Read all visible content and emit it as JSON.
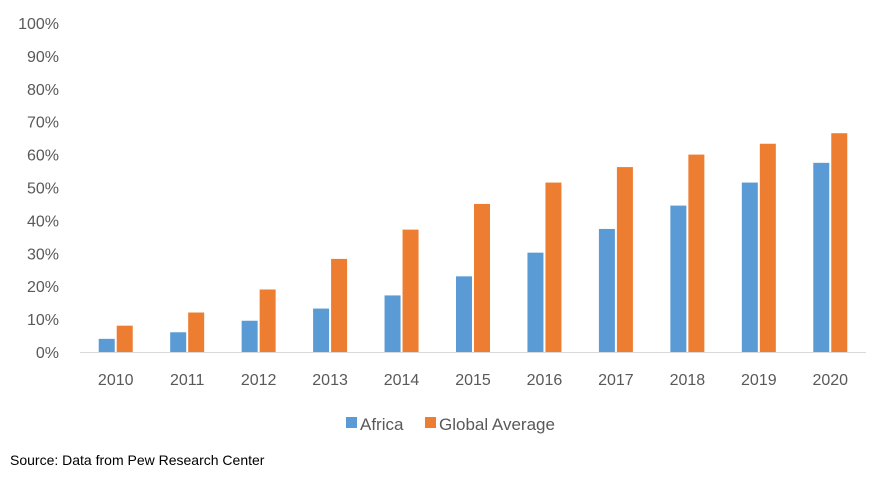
{
  "chart_data": {
    "type": "bar",
    "title": "",
    "xlabel": "",
    "ylabel": "",
    "categories": [
      "2010",
      "2011",
      "2012",
      "2013",
      "2014",
      "2015",
      "2016",
      "2017",
      "2018",
      "2019",
      "2020"
    ],
    "series": [
      {
        "name": "Africa",
        "color": "#5B9BD5",
        "values": [
          4,
          6,
          9.5,
          13.2,
          17.2,
          23,
          30.2,
          37.4,
          44.5,
          51.5,
          57.5
        ]
      },
      {
        "name": "Global Average",
        "color": "#ED7D31",
        "values": [
          8,
          12,
          19,
          28.3,
          37.2,
          45,
          51.5,
          56.2,
          60,
          63.3,
          66.5
        ]
      }
    ],
    "ylim": [
      0,
      100
    ],
    "yticks": [
      "0%",
      "10%",
      "20%",
      "30%",
      "40%",
      "50%",
      "60%",
      "70%",
      "80%",
      "90%",
      "100%"
    ],
    "grid": false,
    "legend_position": "bottom"
  },
  "source": "Source: Data from Pew Research Center"
}
